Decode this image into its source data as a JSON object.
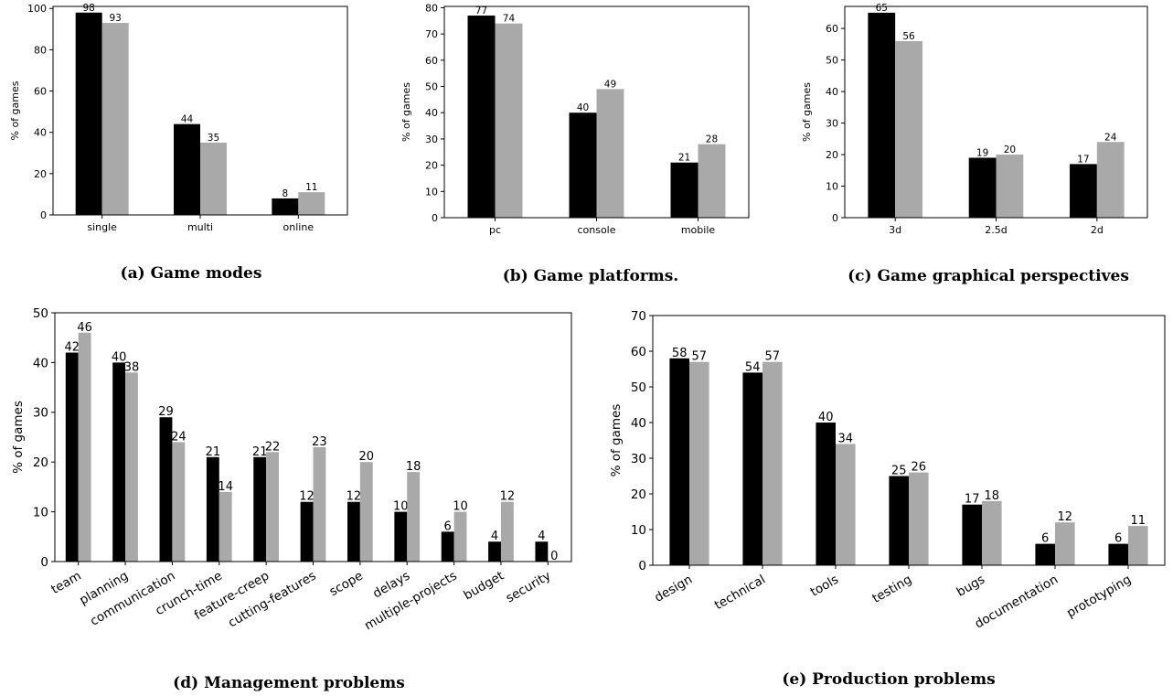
{
  "colors": {
    "series_a": "#000000",
    "series_b": "#a9a9a9",
    "axis": "#000000"
  },
  "chart_data": [
    {
      "id": "a",
      "type": "bar",
      "caption": "(a) Game modes",
      "ylabel": "% of games",
      "categories": [
        "single",
        "multi",
        "online"
      ],
      "series": [
        {
          "values": [
            98,
            44,
            8
          ]
        },
        {
          "values": [
            93,
            35,
            11
          ]
        }
      ],
      "ylim": [
        0,
        101
      ],
      "yticks": [
        0,
        20,
        40,
        60,
        80,
        100
      ],
      "grid": false,
      "legend": "none"
    },
    {
      "id": "b",
      "type": "bar",
      "caption": "(b) Game platforms.",
      "ylabel": "% of games",
      "categories": [
        "pc",
        "console",
        "mobile"
      ],
      "series": [
        {
          "values": [
            77,
            40,
            21
          ]
        },
        {
          "values": [
            74,
            49,
            28
          ]
        }
      ],
      "ylim": [
        0,
        80.5
      ],
      "yticks": [
        0,
        10,
        20,
        30,
        40,
        50,
        60,
        70,
        80
      ],
      "grid": false,
      "legend": "none"
    },
    {
      "id": "c",
      "type": "bar",
      "caption": "(c) Game graphical perspectives",
      "ylabel": "% of games",
      "categories": [
        "3d",
        "2.5d",
        "2d"
      ],
      "series": [
        {
          "values": [
            65,
            19,
            17
          ]
        },
        {
          "values": [
            56,
            20,
            24
          ]
        }
      ],
      "ylim": [
        0,
        67
      ],
      "yticks": [
        0,
        10,
        20,
        30,
        40,
        50,
        60
      ],
      "grid": false,
      "legend": "none"
    },
    {
      "id": "d",
      "type": "bar",
      "caption": "(d) Management problems",
      "ylabel": "% of games",
      "categories": [
        "team",
        "planning",
        "communication",
        "crunch-time",
        "feature-creep",
        "cutting-features",
        "scope",
        "delays",
        "multiple-projects",
        "budget",
        "security"
      ],
      "series": [
        {
          "values": [
            42,
            40,
            29,
            21,
            21,
            12,
            12,
            10,
            6,
            4,
            4
          ]
        },
        {
          "values": [
            46,
            38,
            24,
            14,
            22,
            23,
            20,
            18,
            10,
            12,
            0
          ]
        }
      ],
      "ylim": [
        0,
        50
      ],
      "yticks": [
        0,
        10,
        20,
        30,
        40,
        50
      ],
      "grid": false,
      "legend": "none"
    },
    {
      "id": "e",
      "type": "bar",
      "caption": "(e) Production problems",
      "ylabel": "% of games",
      "categories": [
        "design",
        "technical",
        "tools",
        "testing",
        "bugs",
        "documentation",
        "prototyping"
      ],
      "series": [
        {
          "values": [
            58,
            54,
            40,
            25,
            17,
            6,
            6
          ]
        },
        {
          "values": [
            57,
            57,
            34,
            26,
            18,
            12,
            11
          ]
        }
      ],
      "ylim": [
        0,
        70
      ],
      "yticks": [
        0,
        10,
        20,
        30,
        40,
        50,
        60,
        70
      ],
      "grid": false,
      "legend": "none"
    }
  ]
}
